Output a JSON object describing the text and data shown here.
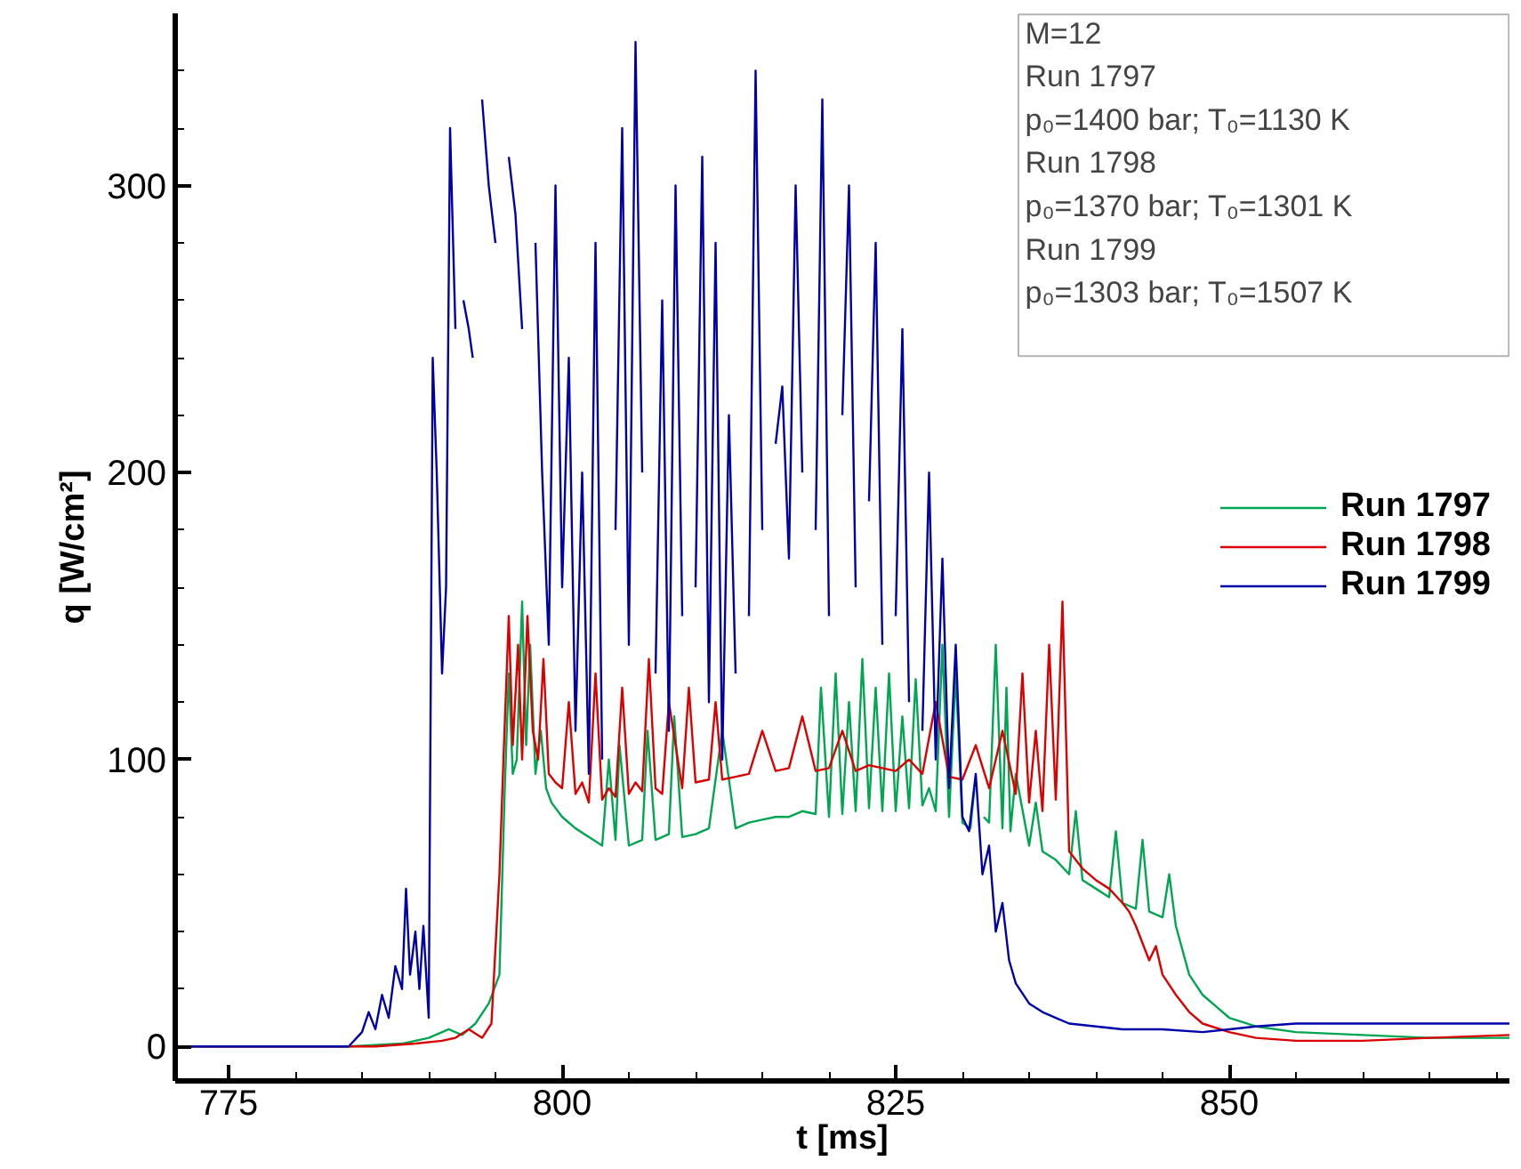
{
  "chart_data": {
    "type": "line",
    "xlabel": "t [ms]",
    "ylabel": "q [W/cm²]",
    "xlim": [
      771,
      871
    ],
    "ylim": [
      -12,
      360
    ],
    "xticks": [
      775,
      800,
      825,
      850,
      {
        "value": 780,
        "label": null
      },
      {
        "value": 785,
        "label": null
      },
      {
        "value": 790,
        "label": null
      },
      {
        "value": 795,
        "label": null
      },
      {
        "value": 805,
        "label": null
      },
      {
        "value": 810,
        "label": null
      },
      {
        "value": 815,
        "label": null
      },
      {
        "value": 820,
        "label": null
      },
      {
        "value": 830,
        "label": null
      },
      {
        "value": 835,
        "label": null
      },
      {
        "value": 840,
        "label": null
      },
      {
        "value": 845,
        "label": null
      },
      {
        "value": 855,
        "label": null
      },
      {
        "value": 860,
        "label": null
      },
      {
        "value": 865,
        "label": null
      },
      {
        "value": 870,
        "label": null
      }
    ],
    "yticks": [
      0,
      100,
      200,
      300,
      {
        "value": 20,
        "label": null
      },
      {
        "value": 40,
        "label": null
      },
      {
        "value": 60,
        "label": null
      },
      {
        "value": 80,
        "label": null
      },
      {
        "value": 120,
        "label": null
      },
      {
        "value": 140,
        "label": null
      },
      {
        "value": 160,
        "label": null
      },
      {
        "value": 180,
        "label": null
      },
      {
        "value": 220,
        "label": null
      },
      {
        "value": 240,
        "label": null
      },
      {
        "value": 260,
        "label": null
      },
      {
        "value": 280,
        "label": null
      },
      {
        "value": 320,
        "label": null
      },
      {
        "value": 340,
        "label": null
      }
    ],
    "grid": false,
    "legend": "right",
    "marker": "none",
    "line_style": "solid",
    "annotations": [
      "M=12",
      "Run  1797",
      "p₀=1400 bar; T₀=1130 K",
      "Run  1798",
      "p₀=1370 bar; T₀=1301 K",
      "Run  1799",
      "p₀=1303 bar; T₀=1507 K"
    ],
    "series": [
      {
        "name": "Run 1797",
        "color": "#00a651",
        "x": [
          771,
          784,
          788,
          790,
          791.5,
          792.5,
          793.5,
          794.5,
          795.3,
          795.7,
          796.0,
          796.3,
          796.6,
          797.0,
          797.3,
          797.6,
          798.0,
          798.4,
          798.8,
          799.2,
          800,
          801,
          802,
          803,
          803.5,
          804,
          804.3,
          805,
          806,
          806.4,
          807,
          808,
          808.4,
          809,
          810,
          811,
          812,
          813,
          814,
          815,
          816,
          817,
          818,
          819,
          819.4,
          820,
          820.5,
          821,
          821.5,
          822,
          822.5,
          823,
          823.5,
          824,
          824.5,
          825,
          825.5,
          826,
          826.5,
          827,
          827.5,
          828,
          828.5,
          829,
          829.5,
          830,
          830.6,
          830.9,
          831.2,
          831.6,
          832,
          832.5,
          833,
          833.3,
          833.6,
          834,
          835,
          835.5,
          836,
          837,
          838,
          838.5,
          839,
          840,
          841,
          841.5,
          842,
          843,
          843.5,
          844,
          845,
          845.5,
          846,
          847,
          848,
          849,
          850,
          852,
          855,
          860,
          865,
          871
        ],
        "values": [
          0,
          0,
          1,
          3,
          6,
          4,
          8,
          15,
          25,
          90,
          130,
          95,
          100,
          155,
          105,
          140,
          95,
          110,
          90,
          85,
          80,
          76,
          73,
          70,
          100,
          72,
          105,
          70,
          72,
          110,
          72,
          74,
          115,
          73,
          74,
          76,
          110,
          76,
          78,
          79,
          80,
          80,
          82,
          81,
          125,
          80,
          130,
          81,
          120,
          82,
          135,
          83,
          125,
          82,
          130,
          82,
          115,
          83,
          128,
          84,
          90,
          82,
          140,
          80,
          130,
          78,
          76,
          90,
          null,
          80,
          78,
          140,
          76,
          125,
          75,
          95,
          70,
          85,
          68,
          65,
          60,
          82,
          58,
          55,
          52,
          75,
          50,
          48,
          72,
          47,
          45,
          60,
          42,
          25,
          18,
          14,
          10,
          7,
          5,
          4,
          3,
          3
        ]
      },
      {
        "name": "Run 1798",
        "color": "#dd0000",
        "x": [
          771,
          786,
          789,
          791,
          792,
          793,
          794,
          794.7,
          795.3,
          795.6,
          796.0,
          796.3,
          796.7,
          797.0,
          797.4,
          797.8,
          798.2,
          798.6,
          799,
          799.5,
          800,
          800.5,
          801,
          801.5,
          802,
          802.5,
          803,
          803.5,
          804,
          804.5,
          805,
          805.5,
          806,
          806.5,
          807,
          807.5,
          808,
          809,
          809.5,
          810,
          811,
          811.5,
          812,
          813,
          814,
          815,
          816,
          817,
          818,
          819,
          820,
          821,
          822,
          823,
          824,
          825,
          826,
          827,
          828,
          829,
          830,
          831,
          832,
          833,
          834,
          834.5,
          835,
          835.5,
          836,
          836.5,
          837,
          837.5,
          838,
          839,
          840,
          841,
          842,
          842.5,
          843,
          844,
          844.5,
          845,
          846,
          847,
          848,
          850,
          852,
          855,
          860,
          865,
          871
        ],
        "values": [
          0,
          0,
          1,
          2,
          3,
          6,
          3,
          8,
          60,
          100,
          150,
          105,
          140,
          100,
          150,
          110,
          100,
          135,
          95,
          92,
          90,
          120,
          88,
          92,
          85,
          130,
          86,
          90,
          87,
          125,
          88,
          92,
          89,
          135,
          90,
          88,
          120,
          90,
          125,
          92,
          93,
          120,
          93,
          94,
          95,
          110,
          96,
          97,
          115,
          96,
          97,
          110,
          96,
          98,
          97,
          96,
          100,
          95,
          120,
          94,
          93,
          105,
          90,
          110,
          88,
          130,
          85,
          110,
          82,
          140,
          86,
          155,
          68,
          62,
          58,
          55,
          50,
          47,
          42,
          30,
          35,
          25,
          18,
          12,
          8,
          5,
          3,
          2,
          2,
          3,
          4
        ]
      },
      {
        "name": "Run 1799",
        "color": "#0000aa",
        "x": [
          771,
          784,
          785,
          785.5,
          786,
          786.5,
          787,
          787.5,
          788,
          788.3,
          788.6,
          789,
          789.3,
          789.6,
          790,
          790.3,
          790.6,
          791,
          791.3,
          791.6,
          792,
          792.3,
          792.6,
          793,
          793.3,
          793.5,
          794,
          794.5,
          795,
          795.5,
          796,
          796.5,
          797,
          797.5,
          798,
          798.5,
          799,
          799.5,
          800,
          800.5,
          801,
          801.5,
          802,
          802.5,
          803,
          803.5,
          804,
          804.5,
          805,
          805.5,
          806,
          806.5,
          807,
          807.5,
          808,
          808.5,
          809,
          809.5,
          810,
          810.5,
          811,
          811.5,
          812,
          812.5,
          813,
          813.5,
          814,
          814.5,
          815,
          815.5,
          816,
          816.5,
          817,
          817.5,
          818,
          818.5,
          819,
          819.5,
          820,
          820.5,
          821,
          821.5,
          822,
          822.5,
          823,
          823.5,
          824,
          824.5,
          825,
          825.5,
          826,
          826.5,
          827,
          827.5,
          828,
          828.5,
          829,
          829.5,
          830,
          830.5,
          831,
          831.5,
          832,
          832.5,
          833,
          833.5,
          834,
          835,
          836,
          837,
          838,
          840,
          842,
          845,
          848,
          850,
          852,
          855,
          858,
          860,
          865,
          871
        ],
        "values": [
          0,
          0,
          5,
          12,
          6,
          18,
          10,
          28,
          20,
          55,
          25,
          40,
          20,
          42,
          10,
          240,
          200,
          130,
          160,
          320,
          250,
          null,
          260,
          250,
          240,
          null,
          330,
          300,
          280,
          null,
          310,
          290,
          250,
          null,
          280,
          200,
          140,
          300,
          160,
          240,
          110,
          200,
          95,
          280,
          100,
          null,
          180,
          320,
          140,
          350,
          200,
          null,
          130,
          260,
          110,
          300,
          150,
          null,
          160,
          310,
          120,
          280,
          100,
          220,
          130,
          null,
          150,
          340,
          180,
          null,
          210,
          230,
          170,
          300,
          200,
          null,
          180,
          330,
          150,
          null,
          220,
          300,
          160,
          null,
          190,
          280,
          140,
          null,
          150,
          250,
          120,
          null,
          110,
          200,
          100,
          170,
          90,
          140,
          80,
          75,
          95,
          60,
          70,
          40,
          50,
          30,
          22,
          15,
          12,
          10,
          8,
          7,
          6,
          6,
          5,
          6,
          7,
          8,
          8,
          8,
          8,
          8
        ]
      }
    ]
  }
}
